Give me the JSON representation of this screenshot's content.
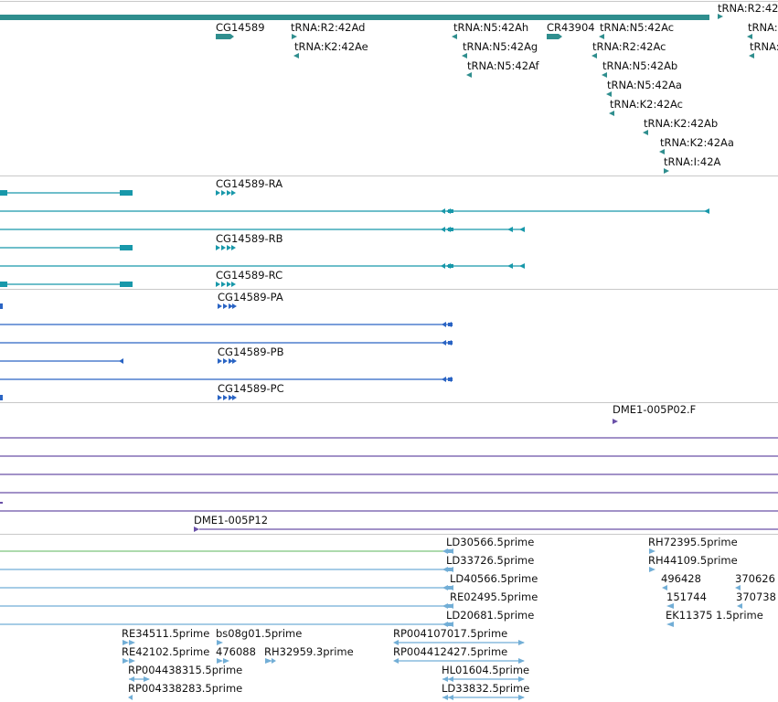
{
  "colors": {
    "gene": "#2f8e8e",
    "transcript": "#1898aa",
    "cds": "#2a64c4",
    "oligo": "#6a50a8",
    "est": "#72aed6",
    "separator": "#c8c8c8",
    "label": "#111111"
  },
  "tracks": {
    "genes": {
      "labels": [
        "tRNA:R2:42",
        "CG14589",
        "tRNA:R2:42Ad",
        "tRNA:K2:42Ae",
        "tRNA:N5:42Ah",
        "tRNA:N5:42Ag",
        "tRNA:N5:42Af",
        "CR43904",
        "tRNA:N5:42Ac",
        "tRNA:R2:42Ac",
        "tRNA:N5:42Ab",
        "tRNA:N5:42Aa",
        "tRNA:K2:42Ac",
        "tRNA:K2:42Ab",
        "tRNA:K2:42Aa",
        "tRNA:I:42A",
        "tRNA:",
        "tRNA:"
      ]
    },
    "transcripts": {
      "labels": [
        "CG14589-RA",
        "CG14589-RB",
        "CG14589-RC"
      ]
    },
    "proteins": {
      "labels": [
        "CG14589-PA",
        "CG14589-PB",
        "CG14589-PC"
      ]
    },
    "oligos": {
      "labels": [
        "DME1-005P02.F",
        "DME1-005P12"
      ]
    },
    "ests": {
      "labels": [
        "LD30566.5prime",
        "RH72395.5prime",
        "LD33726.5prime",
        "RH44109.5prime",
        "LD40566.5prime",
        "496428",
        "370626",
        "RE02495.5prime",
        "151744",
        "370738",
        "LD20681.5prime",
        "EK11375",
        "1.5prime",
        "RE34511.5prime",
        "bs08g01.5prime",
        "RP004107017.5prime",
        "RE42102.5prime",
        "476088",
        "RH32959.3prime",
        "RP004412427.5prime",
        "RP004438315.5prime",
        "HL01604.5prime",
        "RP004338283.5prime",
        "LD33832.5prime"
      ]
    }
  }
}
